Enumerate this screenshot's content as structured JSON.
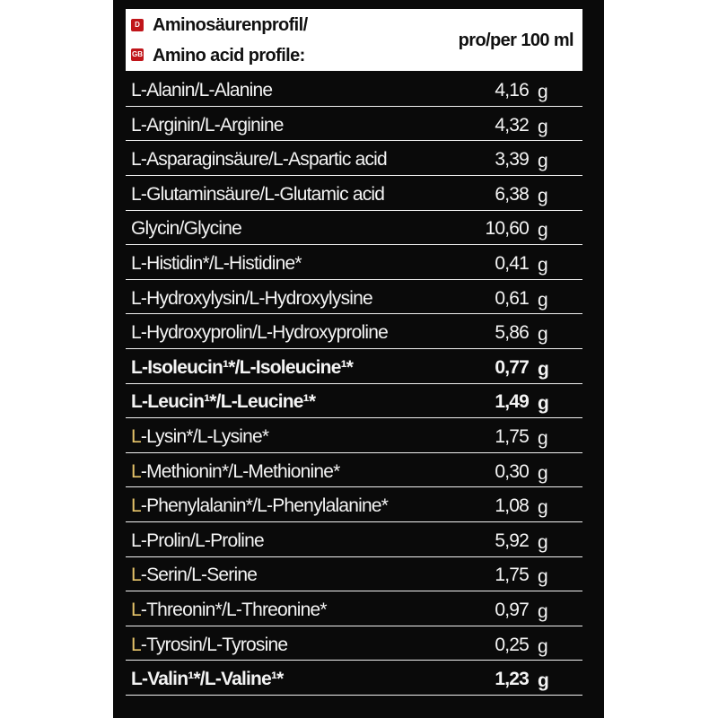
{
  "header": {
    "flag_de": "D",
    "flag_gb": "GB",
    "title_de": "Aminosäurenprofil/",
    "title_en": "Amino acid profile:",
    "column_unit": "pro/per 100 ml"
  },
  "colors": {
    "panel_background": "#0a0a0a",
    "header_background": "#ffffff",
    "flag_red": "#c0151a",
    "text": "#f4f4f4",
    "row_rule": "#f2f2f2"
  },
  "rows": [
    {
      "name": "L-Alanin/L-Alanine",
      "value": "4,16",
      "unit": "g",
      "bold": false
    },
    {
      "name": "L-Arginin/L-Arginine",
      "value": "4,32",
      "unit": "g",
      "bold": false
    },
    {
      "name": "L-Asparaginsäure/L-Aspartic acid",
      "value": "3,39",
      "unit": "g",
      "bold": false
    },
    {
      "name": "L-Glutaminsäure/L-Glutamic acid",
      "value": "6,38",
      "unit": "g",
      "bold": false
    },
    {
      "name": "Glycin/Glycine",
      "value": "10,60",
      "unit": "g",
      "bold": false
    },
    {
      "name": "L-Histidin*/L-Histidine*",
      "value": "0,41",
      "unit": "g",
      "bold": false
    },
    {
      "name": "L-Hydroxylysin/L-Hydroxylysine",
      "value": "0,61",
      "unit": "g",
      "bold": false
    },
    {
      "name": "L-Hydroxyprolin/L-Hydroxyproline",
      "value": "5,86",
      "unit": "g",
      "bold": false
    },
    {
      "name": "L-Isoleucin¹*/L-Isoleucine¹*",
      "value": "0,77",
      "unit": "g",
      "bold": true
    },
    {
      "name": "L-Leucin¹*/L-Leucine¹*",
      "value": "1,49",
      "unit": "g",
      "bold": true
    },
    {
      "name": "L-Lysin*/L-Lysine*",
      "value": "1,75",
      "unit": "g",
      "bold": false
    },
    {
      "name": "L-Methionin*/L-Methionine*",
      "value": "0,30",
      "unit": "g",
      "bold": false
    },
    {
      "name": "L-Phenylalanin*/L-Phenylalanine*",
      "value": "1,08",
      "unit": "g",
      "bold": false
    },
    {
      "name": "L-Prolin/L-Proline",
      "value": "5,92",
      "unit": "g",
      "bold": false
    },
    {
      "name": "L-Serin/L-Serine",
      "value": "1,75",
      "unit": "g",
      "bold": false
    },
    {
      "name": "L-Threonin*/L-Threonine*",
      "value": "0,97",
      "unit": "g",
      "bold": false
    },
    {
      "name": "L-Tyrosin/L-Tyrosine",
      "value": "0,25",
      "unit": "g",
      "bold": false
    },
    {
      "name": "L-Valin¹*/L-Valine¹*",
      "value": "1,23",
      "unit": "g",
      "bold": true
    }
  ]
}
